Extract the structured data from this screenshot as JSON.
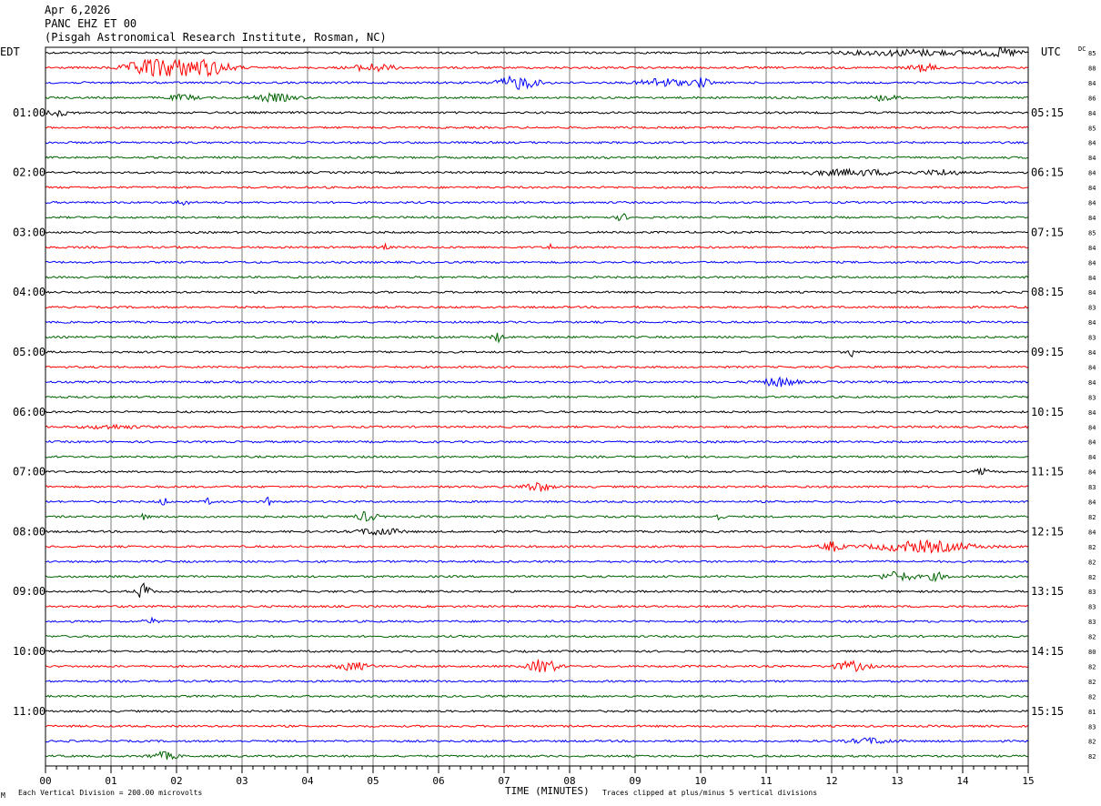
{
  "header": {
    "date": "Apr 6,2026",
    "station": "PANC EHZ ET 00",
    "institution": "(Pisgah Astronomical Research Institute, Rosman, NC)"
  },
  "chart_data": {
    "type": "line",
    "left_axis_label": "EDT",
    "right_axis_label": "UTC",
    "dc_label": "DC",
    "xlabel": "TIME (MINUTES)",
    "x_ticks": [
      "00",
      "01",
      "02",
      "03",
      "04",
      "05",
      "06",
      "07",
      "08",
      "09",
      "10",
      "11",
      "12",
      "13",
      "14",
      "15"
    ],
    "xlim": [
      0,
      15
    ],
    "trace_count": 48,
    "trace_colors": [
      "#000000",
      "#ff0000",
      "#0000ff",
      "#006400"
    ],
    "edt_hours": [
      "01:00",
      "02:00",
      "03:00",
      "04:00",
      "05:00",
      "06:00",
      "07:00",
      "08:00",
      "09:00",
      "10:00",
      "11:00"
    ],
    "utc_hours": [
      "05:15",
      "06:15",
      "07:15",
      "08:15",
      "09:15",
      "10:15",
      "11:15",
      "12:15",
      "13:15",
      "14:15",
      "15:15"
    ],
    "dc_values": [
      "85",
      "88",
      "84",
      "86",
      "84",
      "85",
      "84",
      "84",
      "84",
      "84",
      "84",
      "84",
      "85",
      "84",
      "84",
      "84",
      "84",
      "83",
      "84",
      "83",
      "84",
      "84",
      "84",
      "83",
      "84",
      "84",
      "84",
      "84",
      "84",
      "83",
      "84",
      "82",
      "84",
      "82",
      "82",
      "82",
      "83",
      "83",
      "83",
      "82",
      "80",
      "82",
      "82",
      "82",
      "81",
      "83",
      "82",
      "82"
    ],
    "events": [
      {
        "trace": 0,
        "minute": 13.2,
        "amp": 3,
        "width": 1.8
      },
      {
        "trace": 0,
        "minute": 14.6,
        "amp": 4,
        "width": 0.6
      },
      {
        "trace": 1,
        "minute": 1.7,
        "amp": 12,
        "width": 0.8
      },
      {
        "trace": 1,
        "minute": 2.4,
        "amp": 9,
        "width": 0.8
      },
      {
        "trace": 1,
        "minute": 5.0,
        "amp": 4,
        "width": 0.6
      },
      {
        "trace": 1,
        "minute": 13.4,
        "amp": 4,
        "width": 0.4
      },
      {
        "trace": 2,
        "minute": 7.2,
        "amp": 7,
        "width": 0.6
      },
      {
        "trace": 2,
        "minute": 9.4,
        "amp": 5,
        "width": 0.6
      },
      {
        "trace": 2,
        "minute": 10.0,
        "amp": 5,
        "width": 0.3
      },
      {
        "trace": 3,
        "minute": 2.1,
        "amp": 3,
        "width": 0.4
      },
      {
        "trace": 3,
        "minute": 3.5,
        "amp": 4,
        "width": 0.6
      },
      {
        "trace": 3,
        "minute": 12.8,
        "amp": 3,
        "width": 0.4
      },
      {
        "trace": 4,
        "minute": 0.2,
        "amp": 3,
        "width": 0.4
      },
      {
        "trace": 7,
        "minute": 8.6,
        "amp": 3,
        "width": 0.1
      },
      {
        "trace": 8,
        "minute": 12.3,
        "amp": 3,
        "width": 1.5
      },
      {
        "trace": 8,
        "minute": 13.7,
        "amp": 3,
        "width": 0.5
      },
      {
        "trace": 10,
        "minute": 2.1,
        "amp": 4,
        "width": 0.15
      },
      {
        "trace": 11,
        "minute": 8.8,
        "amp": 4,
        "width": 0.15
      },
      {
        "trace": 13,
        "minute": 5.2,
        "amp": 3,
        "width": 0.1
      },
      {
        "trace": 13,
        "minute": 7.7,
        "amp": 4,
        "width": 0.1
      },
      {
        "trace": 19,
        "minute": 6.9,
        "amp": 5,
        "width": 0.15
      },
      {
        "trace": 20,
        "minute": 12.3,
        "amp": 5,
        "width": 0.1
      },
      {
        "trace": 22,
        "minute": 11.2,
        "amp": 5,
        "width": 0.5
      },
      {
        "trace": 25,
        "minute": 1.0,
        "amp": 2,
        "width": 0.8
      },
      {
        "trace": 28,
        "minute": 14.3,
        "amp": 3,
        "width": 0.2
      },
      {
        "trace": 29,
        "minute": 7.5,
        "amp": 5,
        "width": 0.4
      },
      {
        "trace": 30,
        "minute": 1.8,
        "amp": 5,
        "width": 0.1
      },
      {
        "trace": 30,
        "minute": 2.5,
        "amp": 4,
        "width": 0.1
      },
      {
        "trace": 30,
        "minute": 3.4,
        "amp": 4,
        "width": 0.1
      },
      {
        "trace": 31,
        "minute": 1.5,
        "amp": 4,
        "width": 0.1
      },
      {
        "trace": 31,
        "minute": 4.9,
        "amp": 5,
        "width": 0.3
      },
      {
        "trace": 31,
        "minute": 10.3,
        "amp": 6,
        "width": 0.1
      },
      {
        "trace": 32,
        "minute": 5.1,
        "amp": 4,
        "width": 0.6
      },
      {
        "trace": 33,
        "minute": 12.0,
        "amp": 5,
        "width": 0.3
      },
      {
        "trace": 33,
        "minute": 13.4,
        "amp": 6,
        "width": 1.4
      },
      {
        "trace": 35,
        "minute": 13.0,
        "amp": 5,
        "width": 0.5
      },
      {
        "trace": 35,
        "minute": 13.6,
        "amp": 4,
        "width": 0.3
      },
      {
        "trace": 36,
        "minute": 1.5,
        "amp": 9,
        "width": 0.2
      },
      {
        "trace": 38,
        "minute": 1.6,
        "amp": 3,
        "width": 0.2
      },
      {
        "trace": 41,
        "minute": 4.7,
        "amp": 4,
        "width": 0.5
      },
      {
        "trace": 41,
        "minute": 7.6,
        "amp": 8,
        "width": 0.4
      },
      {
        "trace": 41,
        "minute": 12.3,
        "amp": 5,
        "width": 0.5
      },
      {
        "trace": 46,
        "minute": 12.6,
        "amp": 3,
        "width": 0.6
      },
      {
        "trace": 47,
        "minute": 1.8,
        "amp": 4,
        "width": 0.4
      }
    ]
  },
  "footer": {
    "vertical_division": "Each Vertical Division =  200.00 microvolts",
    "clipping_note": "Traces clipped at plus/minus 5 vertical divisions",
    "corner_mark": "M"
  }
}
